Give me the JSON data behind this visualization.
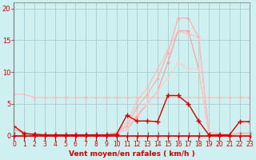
{
  "bg_color": "#cff0f0",
  "grid_color": "#aacccc",
  "xlabel": "Vent moyen/en rafales ( km/h )",
  "ylabel_ticks": [
    0,
    5,
    10,
    15,
    20
  ],
  "x_ticks": [
    0,
    1,
    2,
    3,
    4,
    5,
    6,
    7,
    8,
    9,
    10,
    11,
    12,
    13,
    14,
    15,
    16,
    17,
    18,
    19,
    20,
    21,
    22,
    23
  ],
  "xlim": [
    0,
    23
  ],
  "ylim": [
    0,
    21
  ],
  "series": [
    {
      "name": "lightest_bell",
      "x": [
        0,
        1,
        2,
        3,
        4,
        5,
        6,
        7,
        8,
        9,
        10,
        11,
        12,
        13,
        14,
        15,
        16,
        17,
        18,
        19,
        20,
        21,
        22,
        23
      ],
      "y": [
        1.5,
        0.5,
        0.3,
        0.2,
        0.2,
        0.2,
        0.2,
        0.2,
        0.2,
        0.2,
        0.5,
        1.5,
        4.5,
        6.5,
        9.0,
        13.0,
        18.5,
        18.5,
        15.5,
        0.5,
        0.3,
        0.2,
        0.4,
        0.4
      ],
      "color": "#ffaaaa",
      "lw": 0.8,
      "ms": 3
    },
    {
      "name": "medium_bell",
      "x": [
        0,
        1,
        2,
        3,
        4,
        5,
        6,
        7,
        8,
        9,
        10,
        11,
        12,
        13,
        14,
        15,
        16,
        17,
        18,
        19,
        20,
        21,
        22,
        23
      ],
      "y": [
        1.0,
        0.3,
        0.2,
        0.1,
        0.1,
        0.1,
        0.1,
        0.1,
        0.1,
        0.1,
        0.3,
        1.0,
        3.0,
        5.0,
        7.0,
        11.5,
        16.5,
        16.5,
        10.5,
        0.3,
        0.2,
        0.1,
        0.3,
        0.3
      ],
      "color": "#ff9999",
      "lw": 0.8,
      "ms": 3
    },
    {
      "name": "diagonal_line_top",
      "x": [
        0,
        1,
        2,
        3,
        4,
        5,
        6,
        7,
        8,
        9,
        10,
        11,
        12,
        13,
        14,
        15,
        16,
        17,
        18,
        19,
        20,
        21,
        22,
        23
      ],
      "y": [
        0.0,
        0.0,
        0.0,
        0.0,
        0.0,
        0.0,
        0.0,
        0.0,
        0.0,
        0.0,
        0.5,
        2.0,
        5.5,
        7.5,
        10.5,
        13.5,
        16.5,
        16.0,
        15.5,
        0.5,
        0.1,
        0.1,
        0.3,
        0.3
      ],
      "color": "#ffbbbb",
      "lw": 0.8,
      "ms": 3
    },
    {
      "name": "diagonal_line_bottom",
      "x": [
        0,
        1,
        2,
        3,
        4,
        5,
        6,
        7,
        8,
        9,
        10,
        11,
        12,
        13,
        14,
        15,
        16,
        17,
        18,
        19,
        20,
        21,
        22,
        23
      ],
      "y": [
        0.0,
        0.0,
        0.0,
        0.0,
        0.0,
        0.0,
        0.0,
        0.0,
        0.0,
        0.0,
        0.3,
        1.0,
        3.5,
        5.0,
        7.0,
        9.0,
        11.5,
        10.5,
        10.5,
        0.4,
        0.1,
        0.1,
        0.2,
        0.2
      ],
      "color": "#ffcccc",
      "lw": 0.8,
      "ms": 3
    },
    {
      "name": "flat_top",
      "x": [
        0,
        1,
        2,
        3,
        4,
        5,
        6,
        7,
        8,
        9,
        10,
        11,
        12,
        13,
        14,
        15,
        16,
        17,
        18,
        19,
        20,
        21,
        22,
        23
      ],
      "y": [
        6.5,
        6.5,
        6.0,
        6.0,
        6.0,
        6.0,
        6.0,
        6.0,
        6.0,
        6.0,
        6.0,
        6.0,
        6.0,
        6.0,
        6.0,
        6.0,
        6.0,
        6.0,
        6.0,
        6.0,
        6.0,
        6.0,
        6.0,
        6.0
      ],
      "color": "#ffbbbb",
      "lw": 0.8,
      "ms": 3
    },
    {
      "name": "dark_main",
      "x": [
        0,
        1,
        2,
        3,
        4,
        5,
        6,
        7,
        8,
        9,
        10,
        11,
        12,
        13,
        14,
        15,
        16,
        17,
        18,
        19,
        20,
        21,
        22,
        23
      ],
      "y": [
        1.5,
        0.3,
        0.2,
        0.1,
        0.1,
        0.1,
        0.1,
        0.1,
        0.1,
        0.1,
        0.2,
        3.2,
        2.3,
        2.3,
        2.2,
        6.3,
        6.3,
        5.0,
        2.3,
        0.1,
        0.1,
        0.1,
        2.2,
        2.2
      ],
      "color": "#cc0000",
      "lw": 1.0,
      "ms": 4
    }
  ],
  "arrow_color": "#cc0000",
  "tick_color": "#cc0000",
  "label_color": "#cc0000"
}
